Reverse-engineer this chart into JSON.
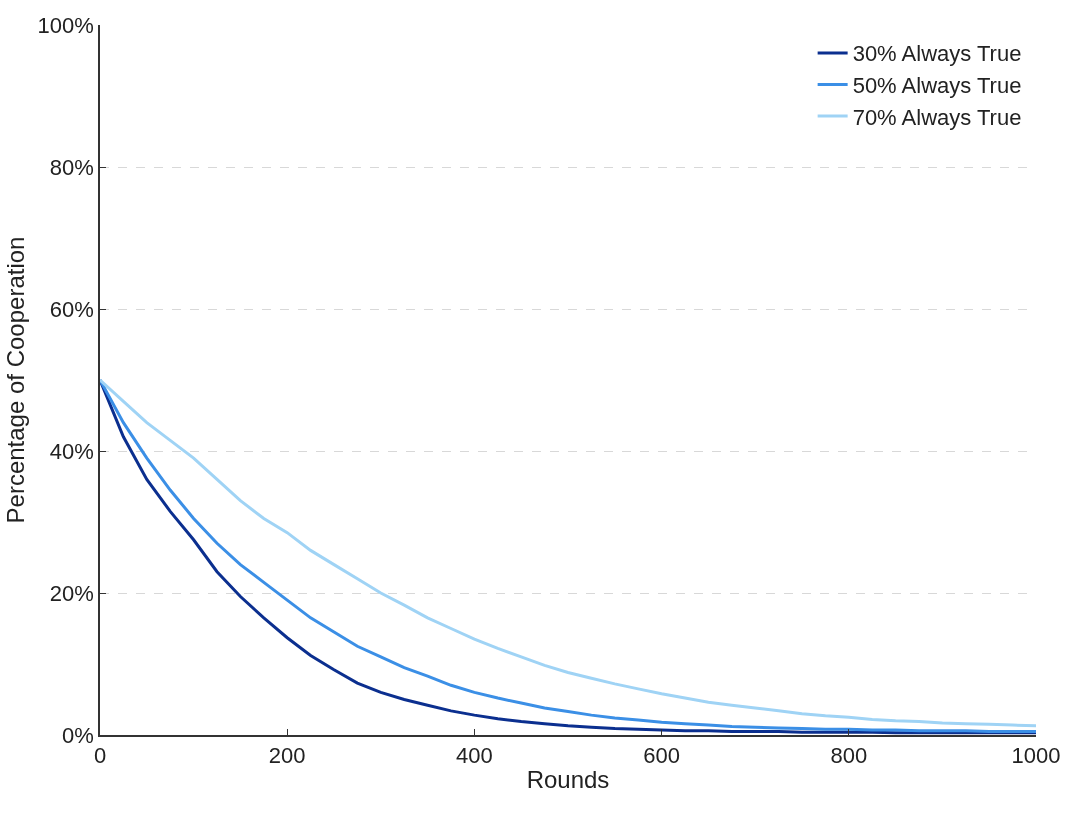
{
  "chart_data": {
    "type": "line",
    "xlabel": "Rounds",
    "ylabel": "Percentage of Cooperation",
    "x": [
      0,
      25,
      50,
      75,
      100,
      125,
      150,
      175,
      200,
      225,
      250,
      275,
      300,
      325,
      350,
      375,
      400,
      425,
      450,
      475,
      500,
      525,
      550,
      575,
      600,
      625,
      650,
      675,
      700,
      725,
      750,
      775,
      800,
      825,
      850,
      875,
      900,
      925,
      950,
      975,
      1000
    ],
    "series": [
      {
        "name": "30% Always True",
        "color": "#0b2f8f",
        "values": [
          50,
          42,
          36,
          31.5,
          27.5,
          23,
          19.5,
          16.5,
          13.7,
          11.2,
          9.2,
          7.3,
          6,
          5,
          4.2,
          3.4,
          2.8,
          2.3,
          1.9,
          1.6,
          1.3,
          1.1,
          0.9,
          0.8,
          0.7,
          0.6,
          0.6,
          0.5,
          0.5,
          0.5,
          0.4,
          0.4,
          0.4,
          0.4,
          0.3,
          0.3,
          0.3,
          0.3,
          0.3,
          0.3,
          0.3
        ]
      },
      {
        "name": "50% Always True",
        "color": "#3b8fe6",
        "values": [
          50,
          44,
          39,
          34.5,
          30.5,
          27,
          24,
          21.5,
          19,
          16.5,
          14.5,
          12.5,
          11,
          9.5,
          8.3,
          7,
          6,
          5.2,
          4.5,
          3.8,
          3.3,
          2.8,
          2.4,
          2.1,
          1.8,
          1.6,
          1.4,
          1.2,
          1.1,
          1,
          0.9,
          0.8,
          0.8,
          0.7,
          0.7,
          0.6,
          0.6,
          0.6,
          0.5,
          0.5,
          0.5
        ]
      },
      {
        "name": "70% Always True",
        "color": "#9fd3f5",
        "values": [
          50,
          47,
          44,
          41.5,
          39,
          36,
          33,
          30.5,
          28.5,
          26,
          24,
          22,
          20,
          18.3,
          16.5,
          15,
          13.5,
          12.2,
          11,
          9.8,
          8.8,
          8,
          7.2,
          6.5,
          5.8,
          5.2,
          4.6,
          4.2,
          3.8,
          3.4,
          3,
          2.7,
          2.5,
          2.2,
          2,
          1.9,
          1.7,
          1.6,
          1.5,
          1.4,
          1.3
        ]
      }
    ],
    "xlim": [
      0,
      1000
    ],
    "xticks": [
      0,
      200,
      400,
      600,
      800,
      1000
    ],
    "ylim": [
      0,
      100
    ],
    "yticks": [
      {
        "value": 0,
        "label": "0%"
      },
      {
        "value": 20,
        "label": "20%"
      },
      {
        "value": 40,
        "label": "40%"
      },
      {
        "value": 60,
        "label": "60%"
      },
      {
        "value": 80,
        "label": "80%"
      },
      {
        "value": 100,
        "label": "100%"
      }
    ],
    "grid": "y",
    "legend": "top right",
    "line_style": "solid",
    "marker": "none"
  }
}
